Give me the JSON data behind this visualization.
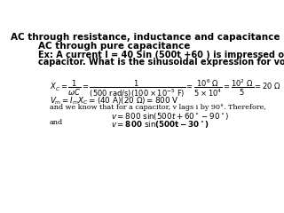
{
  "title": "AC through resistance, inductance and capacitance",
  "subtitle": "AC through pure capacitance",
  "example_line1": "Ex: A current I = 40 Sin (500t +60 ) is impressed on a 100 μF",
  "example_line2": "capacitor. What is the sinusoidal expression for voltage?",
  "text_lag": "and we know that for a capacitor, v lags i by 90°. Therefore,",
  "text_and": "and",
  "bg_color": "#ffffff",
  "text_color": "#000000",
  "title_fontsize": 7.5,
  "subtitle_fontsize": 7.5,
  "body_fontsize": 7.0,
  "math_fontsize": 6.0,
  "small_fontsize": 5.8
}
